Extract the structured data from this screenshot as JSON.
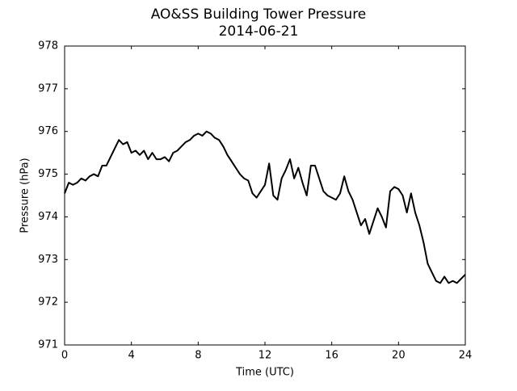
{
  "chart_data": {
    "type": "line",
    "title": "AO&SS Building Tower Pressure",
    "subtitle": "2014-06-21",
    "x_label": "Time (UTC)",
    "y_label": "Pressure (hPa)",
    "xlim": [
      0,
      24
    ],
    "xticks": [
      0,
      4,
      8,
      12,
      16,
      20,
      24
    ],
    "ylim": [
      971,
      978
    ],
    "yticks": [
      971,
      972,
      973,
      974,
      975,
      976,
      977,
      978
    ],
    "series": [
      {
        "color": "#000000",
        "x": [
          0,
          0.25,
          0.5,
          0.75,
          1,
          1.25,
          1.5,
          1.75,
          2,
          2.25,
          2.5,
          2.75,
          3,
          3.25,
          3.5,
          3.75,
          4,
          4.25,
          4.5,
          4.75,
          5,
          5.25,
          5.5,
          5.75,
          6,
          6.25,
          6.5,
          6.75,
          7,
          7.25,
          7.5,
          7.75,
          8,
          8.25,
          8.5,
          8.75,
          9,
          9.25,
          9.5,
          9.75,
          10,
          10.25,
          10.5,
          10.75,
          11,
          11.25,
          11.5,
          11.75,
          12,
          12.25,
          12.5,
          12.75,
          13,
          13.25,
          13.5,
          13.75,
          14,
          14.25,
          14.5,
          14.75,
          15,
          15.25,
          15.5,
          15.75,
          16,
          16.25,
          16.5,
          16.75,
          17,
          17.25,
          17.5,
          17.75,
          18,
          18.25,
          18.5,
          18.75,
          19,
          19.25,
          19.5,
          19.75,
          20,
          20.25,
          20.5,
          20.75,
          21,
          21.25,
          21.5,
          21.75,
          22,
          22.25,
          22.5,
          22.75,
          23,
          23.25,
          23.5,
          23.75,
          24
        ],
        "values": [
          974.55,
          974.8,
          974.75,
          974.8,
          974.9,
          974.85,
          974.95,
          975.0,
          974.95,
          975.2,
          975.2,
          975.4,
          975.6,
          975.8,
          975.7,
          975.75,
          975.5,
          975.55,
          975.45,
          975.55,
          975.35,
          975.5,
          975.35,
          975.35,
          975.4,
          975.3,
          975.5,
          975.55,
          975.65,
          975.75,
          975.8,
          975.9,
          975.95,
          975.9,
          976.0,
          975.95,
          975.85,
          975.8,
          975.65,
          975.45,
          975.3,
          975.15,
          975.0,
          974.9,
          974.85,
          974.55,
          974.45,
          974.6,
          974.75,
          975.25,
          974.5,
          974.4,
          974.9,
          975.1,
          975.35,
          974.9,
          975.15,
          974.8,
          974.5,
          975.2,
          975.2,
          974.9,
          974.6,
          974.5,
          974.45,
          974.4,
          974.55,
          974.95,
          974.6,
          974.4,
          974.1,
          973.8,
          973.95,
          973.6,
          973.9,
          974.2,
          974.0,
          973.75,
          974.6,
          974.7,
          974.65,
          974.5,
          974.1,
          974.55,
          974.1,
          973.8,
          973.4,
          972.9,
          972.7,
          972.5,
          972.45,
          972.6,
          972.45,
          972.5,
          972.45,
          972.55,
          972.65
        ]
      }
    ]
  }
}
